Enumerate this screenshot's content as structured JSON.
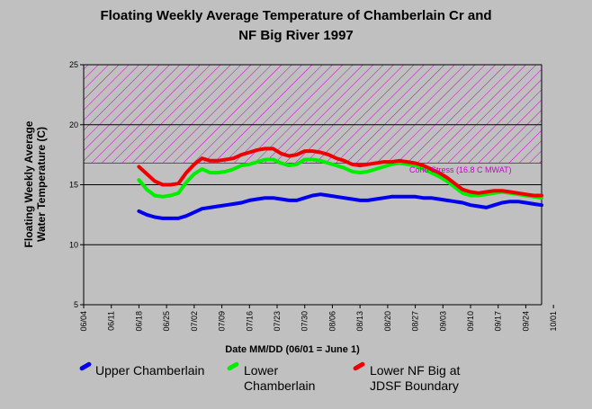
{
  "chart_data": {
    "type": "line",
    "title_line1": "Floating Weekly Average Temperature of Chamberlain Cr and",
    "title_line2": "NF Big River 1997",
    "xlabel": "Date MM/DD (06/01 = June 1)",
    "ylabel_line1": "Floating Weekly Average",
    "ylabel_line2": "Water Temperature (C)",
    "ylim": [
      5,
      25
    ],
    "yticks": [
      5,
      10,
      15,
      20,
      25
    ],
    "x_start_day": 0,
    "x_end_day": 116,
    "xtick_labels": [
      "06/04",
      "06/11",
      "06/18",
      "06/25",
      "07/02",
      "07/09",
      "07/16",
      "07/23",
      "07/30",
      "08/06",
      "08/13",
      "08/20",
      "08/27",
      "09/03",
      "09/10",
      "09/17",
      "09/24",
      "10/01"
    ],
    "grid": "horizontal",
    "stress_zone": {
      "label": "Coho Stress (16.8 C MWAT)",
      "from": 16.8,
      "to": 25,
      "color": "#cc00cc"
    },
    "series": [
      {
        "name": "Upper Chamberlain",
        "color": "#0000ee",
        "x": [
          14,
          16,
          18,
          20,
          22,
          24,
          26,
          28,
          30,
          32,
          34,
          36,
          38,
          40,
          42,
          44,
          46,
          48,
          50,
          52,
          54,
          56,
          58,
          60,
          62,
          64,
          66,
          68,
          70,
          72,
          74,
          76,
          78,
          80,
          82,
          84,
          86,
          88,
          90,
          92,
          94,
          96,
          98,
          100,
          102,
          104,
          106,
          108,
          110,
          112,
          114,
          116
        ],
        "values": [
          12.8,
          12.5,
          12.3,
          12.2,
          12.2,
          12.2,
          12.4,
          12.7,
          13.0,
          13.1,
          13.2,
          13.3,
          13.4,
          13.5,
          13.7,
          13.8,
          13.9,
          13.9,
          13.8,
          13.7,
          13.7,
          13.9,
          14.1,
          14.2,
          14.1,
          14.0,
          13.9,
          13.8,
          13.7,
          13.7,
          13.8,
          13.9,
          14.0,
          14.0,
          14.0,
          14.0,
          13.9,
          13.9,
          13.8,
          13.7,
          13.6,
          13.5,
          13.3,
          13.2,
          13.1,
          13.3,
          13.5,
          13.6,
          13.6,
          13.5,
          13.4,
          13.3
        ]
      },
      {
        "name": "Lower Chamberlain",
        "color": "#00ee00",
        "x": [
          14,
          16,
          18,
          20,
          22,
          24,
          26,
          28,
          30,
          32,
          34,
          36,
          38,
          40,
          42,
          44,
          46,
          48,
          50,
          52,
          54,
          56,
          58,
          60,
          62,
          64,
          66,
          68,
          70,
          72,
          74,
          76,
          78,
          80,
          82,
          84,
          86,
          88,
          90,
          92,
          94,
          96,
          98,
          100,
          102,
          104,
          106,
          108,
          110,
          112,
          114,
          116
        ],
        "values": [
          15.4,
          14.6,
          14.1,
          14.0,
          14.1,
          14.3,
          15.2,
          15.9,
          16.3,
          16.0,
          16.0,
          16.1,
          16.3,
          16.6,
          16.7,
          16.9,
          17.1,
          17.1,
          16.8,
          16.6,
          16.7,
          17.1,
          17.1,
          17.0,
          16.8,
          16.6,
          16.4,
          16.1,
          16.0,
          16.1,
          16.3,
          16.5,
          16.7,
          16.8,
          16.7,
          16.6,
          16.3,
          16.0,
          15.7,
          15.3,
          14.8,
          14.3,
          14.1,
          14.1,
          14.2,
          14.3,
          14.4,
          14.3,
          14.2,
          14.1,
          14.0,
          13.9
        ]
      },
      {
        "name": "Lower NF Big at JDSF Boundary",
        "color": "#ee0000",
        "x": [
          14,
          16,
          18,
          20,
          22,
          24,
          26,
          28,
          30,
          32,
          34,
          36,
          38,
          40,
          42,
          44,
          46,
          48,
          50,
          52,
          54,
          56,
          58,
          60,
          62,
          64,
          66,
          68,
          70,
          72,
          74,
          76,
          78,
          80,
          82,
          84,
          86,
          88,
          90,
          92,
          94,
          96,
          98,
          100,
          102,
          104,
          106,
          108,
          110,
          112,
          114,
          116
        ],
        "values": [
          16.5,
          15.9,
          15.3,
          15.0,
          15.0,
          15.1,
          16.0,
          16.7,
          17.2,
          17.0,
          17.0,
          17.1,
          17.2,
          17.5,
          17.7,
          17.9,
          18.0,
          18.0,
          17.6,
          17.4,
          17.5,
          17.8,
          17.8,
          17.7,
          17.5,
          17.2,
          17.0,
          16.7,
          16.6,
          16.7,
          16.8,
          16.9,
          16.9,
          17.0,
          16.9,
          16.8,
          16.6,
          16.3,
          16.0,
          15.6,
          15.1,
          14.6,
          14.4,
          14.3,
          14.4,
          14.5,
          14.5,
          14.4,
          14.3,
          14.2,
          14.1,
          14.1
        ]
      }
    ]
  },
  "legend": [
    {
      "label_line1": "Upper Chamberlain",
      "label_line2": "",
      "color": "#0000ee"
    },
    {
      "label_line1": "Lower",
      "label_line2": "Chamberlain",
      "color": "#00ee00"
    },
    {
      "label_line1": "Lower NF Big at",
      "label_line2": "JDSF Boundary",
      "color": "#ee0000"
    }
  ]
}
